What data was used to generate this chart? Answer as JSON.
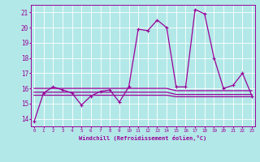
{
  "xlabel": "Windchill (Refroidissement éolien,°C)",
  "x": [
    0,
    1,
    2,
    3,
    4,
    5,
    6,
    7,
    8,
    9,
    10,
    11,
    12,
    13,
    14,
    15,
    16,
    17,
    18,
    19,
    20,
    21,
    22,
    23
  ],
  "y_main": [
    13.8,
    15.7,
    16.1,
    15.9,
    15.7,
    14.9,
    15.5,
    15.8,
    15.9,
    15.1,
    16.1,
    19.9,
    19.8,
    20.5,
    20.0,
    16.1,
    16.1,
    21.2,
    20.9,
    18.0,
    16.0,
    16.2,
    17.0,
    15.5
  ],
  "y_ref1": [
    16.0,
    16.0,
    16.0,
    16.0,
    16.0,
    16.0,
    16.0,
    16.0,
    16.0,
    16.0,
    16.0,
    16.0,
    16.0,
    16.0,
    16.0,
    15.85,
    15.85,
    15.85,
    15.85,
    15.85,
    15.85,
    15.85,
    15.85,
    15.85
  ],
  "y_ref2": [
    15.75,
    15.75,
    15.75,
    15.75,
    15.75,
    15.75,
    15.75,
    15.75,
    15.75,
    15.75,
    15.75,
    15.75,
    15.75,
    15.75,
    15.75,
    15.6,
    15.6,
    15.6,
    15.6,
    15.6,
    15.6,
    15.6,
    15.6,
    15.6
  ],
  "y_ref3": [
    15.55,
    15.55,
    15.55,
    15.55,
    15.55,
    15.55,
    15.55,
    15.55,
    15.55,
    15.55,
    15.55,
    15.55,
    15.55,
    15.55,
    15.55,
    15.45,
    15.45,
    15.45,
    15.45,
    15.45,
    15.45,
    15.45,
    15.45,
    15.45
  ],
  "ylim": [
    13.5,
    21.5
  ],
  "yticks": [
    14,
    15,
    16,
    17,
    18,
    19,
    20,
    21
  ],
  "xticks": [
    0,
    1,
    2,
    3,
    4,
    5,
    6,
    7,
    8,
    9,
    10,
    11,
    12,
    13,
    14,
    15,
    16,
    17,
    18,
    19,
    20,
    21,
    22,
    23
  ],
  "line_color": "#990099",
  "bg_color": "#b3e8e8",
  "grid_color": "#ffffff",
  "font_color": "#990099"
}
